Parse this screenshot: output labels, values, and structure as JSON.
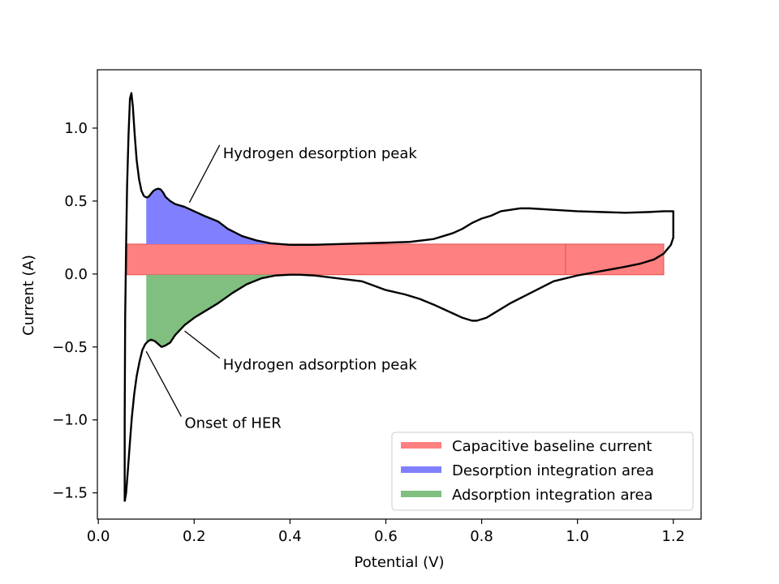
{
  "chart_data": {
    "type": "line",
    "xlabel": "Potential (V)",
    "ylabel": "Current (A)",
    "xlim": [
      -0.002,
      1.258
    ],
    "ylim": [
      -1.68,
      1.4
    ],
    "xticks": [
      0.0,
      0.2,
      0.4,
      0.6,
      0.8,
      1.0,
      1.2
    ],
    "xtick_labels": [
      "0.0",
      "0.2",
      "0.4",
      "0.6",
      "0.8",
      "1.0",
      "1.2"
    ],
    "yticks": [
      -1.5,
      -1.0,
      -0.5,
      0.0,
      0.5,
      1.0
    ],
    "ytick_labels": [
      "−1.5",
      "−1.0",
      "−0.5",
      "0.0",
      "0.5",
      "1.0"
    ],
    "grid": false,
    "legend_position": "lower-right",
    "colors": {
      "curve": "#000000",
      "baseline": "#ff8080",
      "desorption": "#8080ff",
      "adsorption": "#80bf80"
    },
    "curve": {
      "x": [
        0.055,
        0.055,
        0.056,
        0.058,
        0.06,
        0.063,
        0.066,
        0.069,
        0.072,
        0.076,
        0.08,
        0.085,
        0.09,
        0.095,
        0.1,
        0.105,
        0.11,
        0.115,
        0.12,
        0.125,
        0.13,
        0.135,
        0.14,
        0.15,
        0.16,
        0.18,
        0.2,
        0.22,
        0.25,
        0.27,
        0.3,
        0.33,
        0.36,
        0.4,
        0.45,
        0.5,
        0.55,
        0.6,
        0.65,
        0.7,
        0.72,
        0.74,
        0.76,
        0.78,
        0.8,
        0.82,
        0.84,
        0.86,
        0.88,
        0.9,
        0.95,
        1.0,
        1.05,
        1.1,
        1.15,
        1.18,
        1.2,
        1.2,
        1.2,
        1.195,
        1.19,
        1.18,
        1.16,
        1.13,
        1.1,
        1.05,
        1.0,
        0.975,
        0.95,
        0.92,
        0.89,
        0.86,
        0.83,
        0.81,
        0.79,
        0.78,
        0.76,
        0.74,
        0.72,
        0.7,
        0.67,
        0.64,
        0.6,
        0.55,
        0.5,
        0.45,
        0.42,
        0.4,
        0.37,
        0.34,
        0.31,
        0.28,
        0.25,
        0.22,
        0.2,
        0.18,
        0.16,
        0.15,
        0.14,
        0.132,
        0.125,
        0.118,
        0.11,
        0.104,
        0.098,
        0.092,
        0.086,
        0.08,
        0.075,
        0.07,
        0.066,
        0.062,
        0.058,
        0.055
      ],
      "y": [
        -1.56,
        -1.0,
        -0.3,
        0.2,
        0.6,
        0.95,
        1.2,
        1.24,
        1.15,
        0.95,
        0.78,
        0.65,
        0.57,
        0.535,
        0.525,
        0.53,
        0.55,
        0.57,
        0.58,
        0.585,
        0.58,
        0.56,
        0.53,
        0.5,
        0.48,
        0.46,
        0.43,
        0.4,
        0.36,
        0.31,
        0.26,
        0.23,
        0.21,
        0.2,
        0.2,
        0.205,
        0.21,
        0.215,
        0.22,
        0.24,
        0.26,
        0.28,
        0.31,
        0.35,
        0.38,
        0.4,
        0.43,
        0.44,
        0.45,
        0.45,
        0.44,
        0.43,
        0.425,
        0.42,
        0.425,
        0.43,
        0.43,
        0.35,
        0.25,
        0.2,
        0.18,
        0.14,
        0.1,
        0.07,
        0.05,
        0.02,
        -0.01,
        -0.03,
        -0.05,
        -0.1,
        -0.15,
        -0.2,
        -0.26,
        -0.3,
        -0.32,
        -0.32,
        -0.3,
        -0.27,
        -0.24,
        -0.21,
        -0.17,
        -0.14,
        -0.11,
        -0.05,
        -0.03,
        -0.01,
        -0.005,
        -0.005,
        -0.01,
        -0.03,
        -0.07,
        -0.13,
        -0.2,
        -0.26,
        -0.3,
        -0.35,
        -0.42,
        -0.47,
        -0.49,
        -0.5,
        -0.48,
        -0.46,
        -0.45,
        -0.46,
        -0.48,
        -0.52,
        -0.6,
        -0.7,
        -0.82,
        -0.98,
        -1.15,
        -1.33,
        -1.5,
        -1.56
      ]
    },
    "baseline_band": {
      "x_start": 0.06,
      "x_end": 1.18,
      "y_low": -0.005,
      "y_high": 0.205
    },
    "desorption_area": {
      "x_start": 0.1,
      "x_end": 0.43,
      "baseline_y": 0.205
    },
    "adsorption_area": {
      "x_start": 0.1,
      "x_end": 0.43,
      "baseline_y": -0.005
    },
    "annotations": [
      {
        "text": "Hydrogen desorption peak",
        "point": [
          0.19,
          0.49
        ],
        "text_pos": [
          0.26,
          0.795
        ]
      },
      {
        "text": "Hydrogen adsorption peak",
        "point": [
          0.18,
          -0.39
        ],
        "text_pos": [
          0.26,
          -0.655
        ]
      },
      {
        "text": "Onset of HER",
        "point": [
          0.1,
          -0.53
        ],
        "text_pos": [
          0.18,
          -1.055
        ]
      }
    ],
    "legend": [
      {
        "label": "Capacitive baseline current",
        "color": "#ff8080"
      },
      {
        "label": "Desorption integration area",
        "color": "#8080ff"
      },
      {
        "label": "Adsorption integration area",
        "color": "#80bf80"
      }
    ]
  }
}
